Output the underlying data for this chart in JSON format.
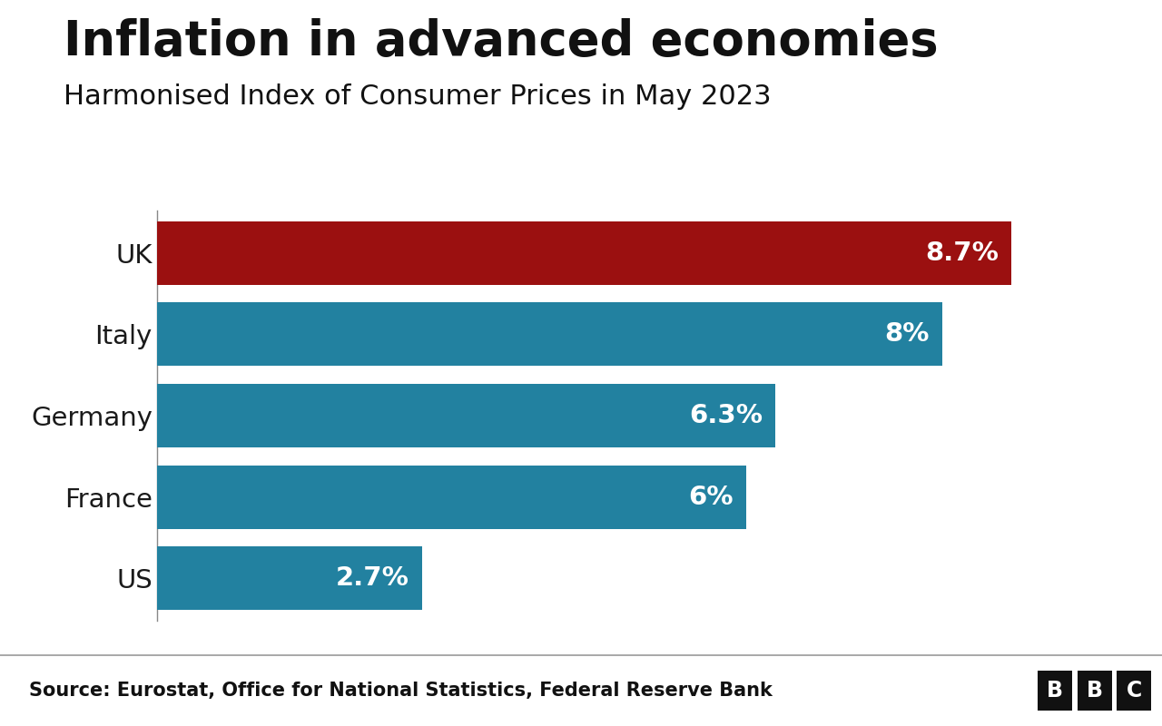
{
  "title": "Inflation in advanced economies",
  "subtitle": "Harmonised Index of Consumer Prices in May 2023",
  "source": "Source: Eurostat, Office for National Statistics, Federal Reserve Bank",
  "categories": [
    "UK",
    "Italy",
    "Germany",
    "France",
    "US"
  ],
  "values": [
    8.7,
    8.0,
    6.3,
    6.0,
    2.7
  ],
  "labels": [
    "8.7%",
    "8%",
    "6.3%",
    "6%",
    "2.7%"
  ],
  "bar_colors": [
    "#9b1010",
    "#2281a0",
    "#2281a0",
    "#2281a0",
    "#2281a0"
  ],
  "background_color": "#ffffff",
  "title_fontsize": 38,
  "subtitle_fontsize": 22,
  "label_fontsize": 21,
  "ylabel_fontsize": 21,
  "source_fontsize": 15,
  "xlim": [
    0,
    10
  ],
  "footer_bg": "#ffffff",
  "footer_text_color": "#111111",
  "bbc_box_color": "#111111",
  "bbc_letter_color": "#ffffff",
  "separator_color": "#999999"
}
